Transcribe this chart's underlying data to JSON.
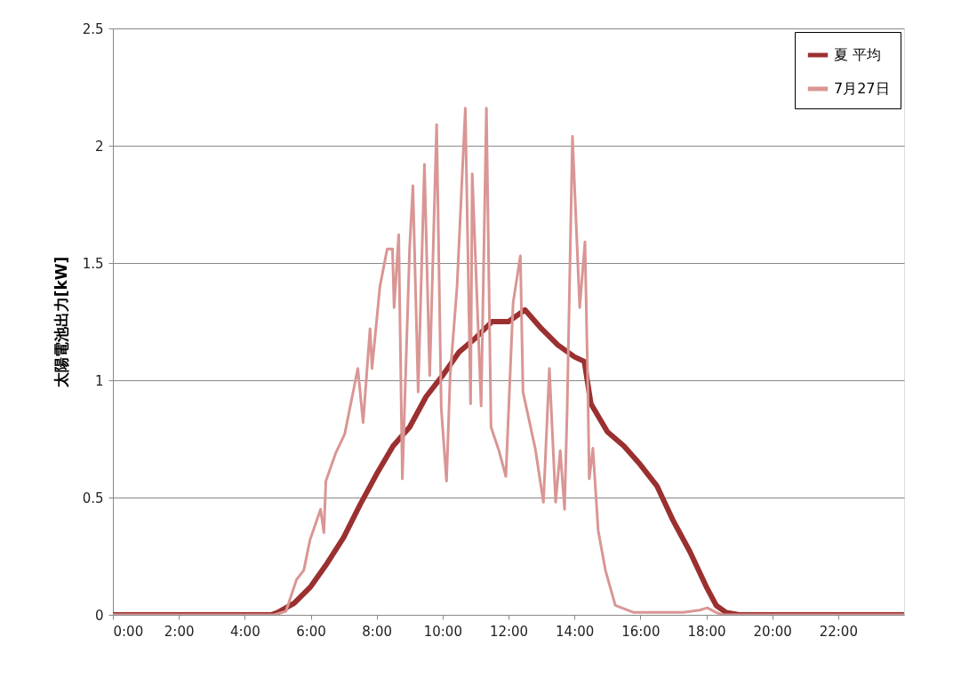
{
  "chart_data": {
    "type": "line",
    "ylabel": "太陽電池出力[kW]",
    "xlim": [
      0,
      24
    ],
    "ylim": [
      0,
      2.5
    ],
    "xticks": [
      {
        "value": 0,
        "label": "0:00"
      },
      {
        "value": 2,
        "label": "2:00"
      },
      {
        "value": 4,
        "label": "4:00"
      },
      {
        "value": 6,
        "label": "6:00"
      },
      {
        "value": 8,
        "label": "8:00"
      },
      {
        "value": 10,
        "label": "10:00"
      },
      {
        "value": 12,
        "label": "12:00"
      },
      {
        "value": 14,
        "label": "14:00"
      },
      {
        "value": 16,
        "label": "16:00"
      },
      {
        "value": 18,
        "label": "18:00"
      },
      {
        "value": 20,
        "label": "20:00"
      },
      {
        "value": 22,
        "label": "22:00"
      }
    ],
    "yticks": [
      0,
      0.5,
      1,
      1.5,
      2,
      2.5
    ],
    "grid": "y",
    "legend": "top right",
    "marker": "none",
    "line_style": "solid",
    "series": [
      {
        "name": "夏 平均",
        "color": "#9b3030",
        "x": [
          0,
          4.8,
          5.0,
          5.5,
          6,
          6.5,
          7,
          7.5,
          8,
          8.5,
          9,
          9.5,
          10,
          10.5,
          11,
          11.5,
          12,
          12.5,
          13,
          13.5,
          14,
          14.3,
          14.5,
          15,
          15.5,
          16,
          16.5,
          17,
          17.5,
          18,
          18.3,
          18.6,
          19,
          24
        ],
        "values": [
          0,
          0,
          0.01,
          0.05,
          0.12,
          0.22,
          0.33,
          0.47,
          0.6,
          0.72,
          0.8,
          0.93,
          1.02,
          1.12,
          1.18,
          1.25,
          1.25,
          1.3,
          1.22,
          1.15,
          1.1,
          1.08,
          0.9,
          0.78,
          0.72,
          0.64,
          0.55,
          0.4,
          0.27,
          0.12,
          0.04,
          0.01,
          0,
          0
        ]
      },
      {
        "name": "7月27日",
        "color": "#d99694",
        "x": [
          0,
          4.9,
          5.25,
          5.57,
          5.79,
          5.98,
          6.3,
          6.4,
          6.46,
          6.76,
          7.03,
          7.43,
          7.59,
          7.8,
          7.86,
          8.1,
          8.32,
          8.48,
          8.53,
          8.67,
          8.78,
          9.0,
          9.1,
          9.26,
          9.45,
          9.61,
          9.82,
          9.96,
          10.12,
          10.23,
          10.44,
          10.69,
          10.85,
          10.9,
          11.17,
          11.33,
          11.47,
          11.71,
          11.92,
          12.14,
          12.36,
          12.44,
          12.81,
          13.06,
          13.24,
          13.43,
          13.57,
          13.7,
          13.78,
          13.94,
          14.16,
          14.32,
          14.4,
          14.45,
          14.56,
          14.72,
          14.94,
          15.24,
          15.8,
          17.3,
          17.8,
          18.03,
          18.3,
          18.5,
          24
        ],
        "values": [
          0,
          0,
          0.015,
          0.15,
          0.19,
          0.32,
          0.45,
          0.35,
          0.57,
          0.69,
          0.77,
          1.05,
          0.82,
          1.22,
          1.05,
          1.4,
          1.56,
          1.56,
          1.31,
          1.62,
          0.58,
          1.56,
          1.83,
          0.95,
          1.92,
          1.02,
          2.09,
          0.88,
          0.57,
          1.02,
          1.4,
          2.16,
          0.9,
          1.88,
          0.89,
          2.16,
          0.8,
          0.7,
          0.59,
          1.33,
          1.53,
          0.95,
          0.71,
          0.48,
          1.05,
          0.48,
          0.7,
          0.45,
          0.88,
          2.04,
          1.31,
          1.59,
          1.02,
          0.58,
          0.71,
          0.36,
          0.19,
          0.04,
          0.01,
          0.01,
          0.02,
          0.03,
          0.01,
          0,
          0
        ]
      }
    ]
  }
}
